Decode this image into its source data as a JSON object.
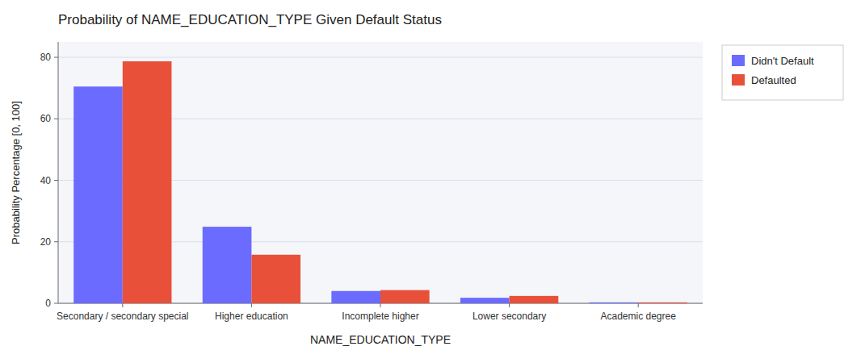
{
  "chart_data": {
    "type": "bar",
    "title": "Probability of NAME_EDUCATION_TYPE Given Default Status",
    "x_label": "NAME_EDUCATION_TYPE",
    "y_label": "Probability Percentage [0, 100]",
    "categories": [
      "Secondary / secondary special",
      "Higher education",
      "Incomplete higher",
      "Lower secondary",
      "Academic degree"
    ],
    "series": [
      {
        "name": "Didn't Default",
        "color": "#6b6bff",
        "values": [
          70.5,
          24.9,
          4.0,
          1.8,
          0.3
        ]
      },
      {
        "name": "Defaulted",
        "color": "#e8503a",
        "values": [
          78.7,
          15.8,
          4.3,
          2.4,
          0.3
        ]
      }
    ],
    "ylim": [
      0,
      85
    ],
    "yticks": [
      0,
      20,
      40,
      60,
      80
    ],
    "grid": true,
    "legend": "right"
  }
}
